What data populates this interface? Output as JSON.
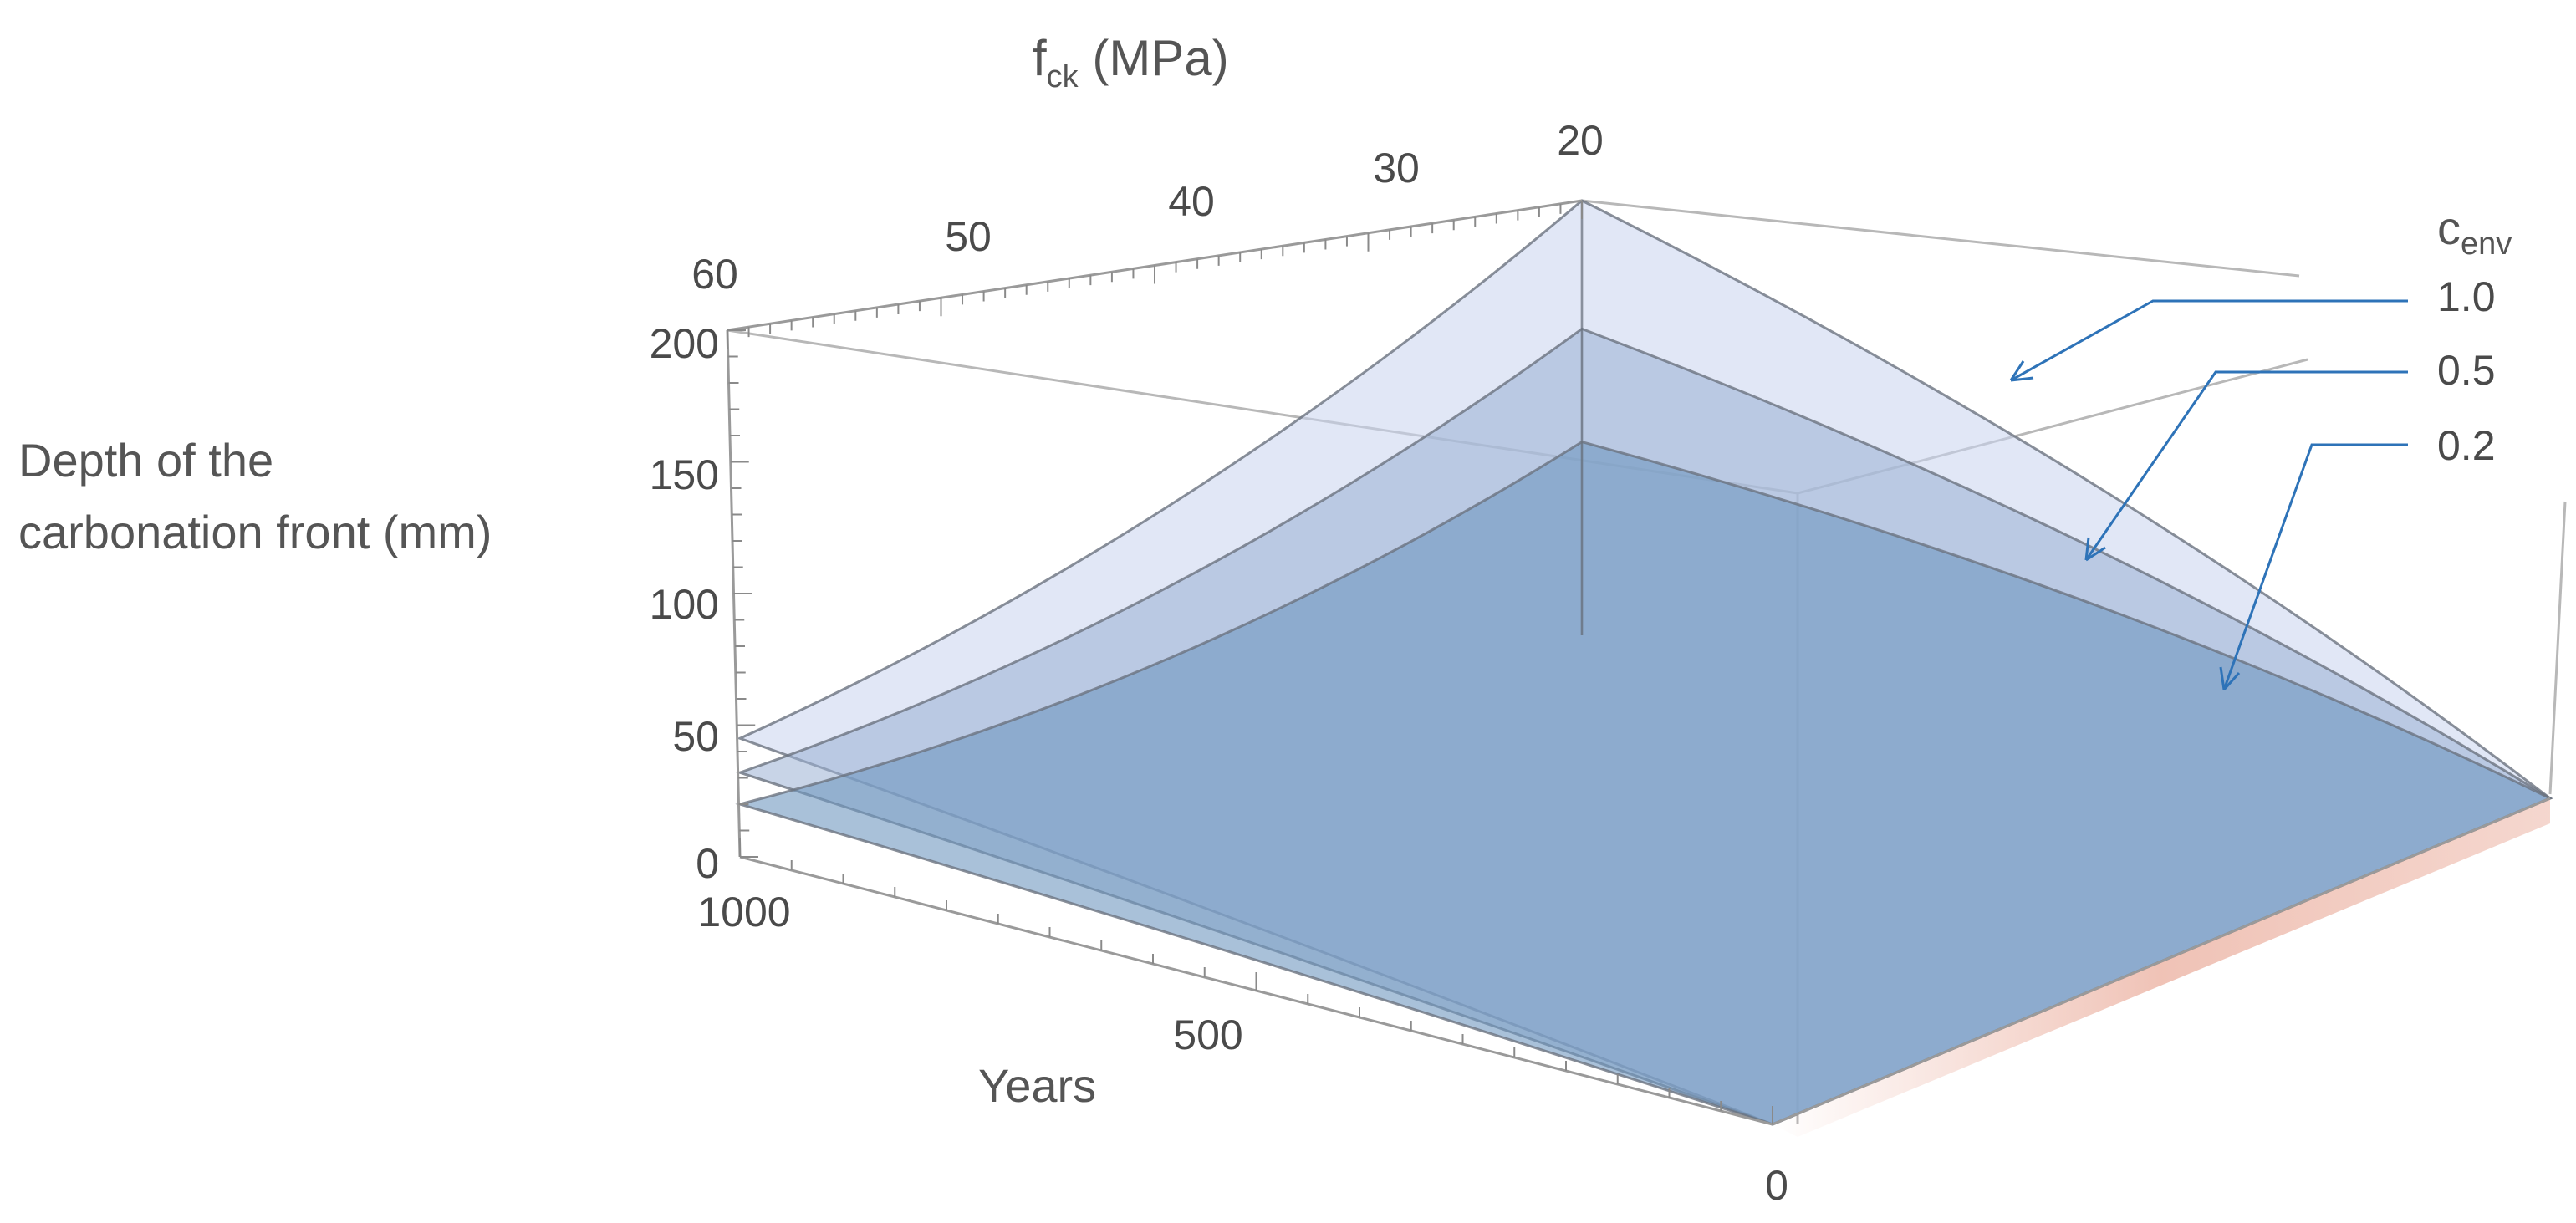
{
  "chart_data": {
    "type": "surface3d",
    "title": "",
    "zlabel_lines": [
      "Depth of the",
      "carbonation front (mm)"
    ],
    "fck_label": {
      "main": "f",
      "sub": "ck",
      "unit": " (MPa)"
    },
    "years_label": "Years",
    "z_ticks": [
      "0",
      "50",
      "100",
      "150",
      "200"
    ],
    "fck_ticks": [
      "60",
      "50",
      "40",
      "30",
      "20"
    ],
    "year_ticks": [
      "1000",
      "500",
      "0"
    ],
    "zlim": [
      0,
      200
    ],
    "fck_range": [
      20,
      60
    ],
    "years_range": [
      0,
      1000
    ],
    "legend": {
      "title_main": "c",
      "title_sub": "env",
      "position": "right"
    },
    "series": [
      {
        "name": "1.0",
        "c_env": 1.0,
        "depth_at_fck20_1000y": 200,
        "depth_at_fck60_1000y": 45
      },
      {
        "name": "0.5",
        "c_env": 0.5,
        "depth_at_fck20_1000y": 141,
        "depth_at_fck60_1000y": 32
      },
      {
        "name": "0.2",
        "c_env": 0.2,
        "depth_at_fck20_1000y": 89,
        "depth_at_fck60_1000y": 20
      }
    ],
    "colors": {
      "surface_top": "#c9d3ee",
      "surface_mid": "#9bb1d3",
      "surface_low": "#6f97bf",
      "edge_warm": "#e0856c"
    }
  }
}
